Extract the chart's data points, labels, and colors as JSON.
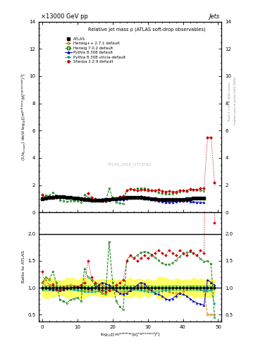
{
  "title_top": "×13000 GeV pp",
  "title_right": "Jets",
  "plot_title": "Relative jet mass ρ (ATLAS soft-drop observables)",
  "watermark": "ATLAS_2019_I1772062",
  "ylabel_main": "(1/σ$_{resum}$) dσ/d log$_{10}$[(m$^{soft drop}$/p$_T^{ungroomed}$)$^2$]",
  "ylabel_ratio": "Ratio to ATLAS",
  "xlabel": "log$_{10}$[(m$^{soft drop}$/p$_T^{ungroomed}$)$^2$]",
  "right_label_top": "Rivet 3.1.10, ≥ 400k events",
  "right_label_bot": "mcplots.cern.ch [arXiv:1306.3436]",
  "xlim": [
    -1,
    51
  ],
  "ylim_main": [
    0,
    14
  ],
  "ylim_ratio": [
    0.38,
    2.4
  ],
  "yticks_main": [
    0,
    2,
    4,
    6,
    8,
    10,
    12,
    14
  ],
  "yticks_ratio": [
    0.5,
    1.0,
    1.5,
    2.0
  ],
  "xticks": [
    0,
    10,
    20,
    30,
    40,
    50
  ],
  "series": [
    {
      "label": "ATLAS",
      "color": "#000000",
      "marker": "s",
      "ms": 3.5,
      "ls": "none",
      "filled": true
    },
    {
      "label": "Herwig++ 2.7.1 default",
      "color": "#cc7700",
      "marker": "o",
      "ms": 3.0,
      "ls": "--",
      "filled": false
    },
    {
      "label": "Herwig 7.0.2 default",
      "color": "#007700",
      "marker": "s",
      "ms": 3.0,
      "ls": "--",
      "filled": false
    },
    {
      "label": "Pythia 8.308 default",
      "color": "#0000cc",
      "marker": "^",
      "ms": 3.0,
      "ls": "-",
      "filled": true
    },
    {
      "label": "Pythia 8.308 vincia-default",
      "color": "#00aaaa",
      "marker": "v",
      "ms": 3.0,
      "ls": "--",
      "filled": true
    },
    {
      "label": "Sherpa 2.2.9 default",
      "color": "#cc0000",
      "marker": "D",
      "ms": 2.5,
      "ls": ":",
      "filled": true
    }
  ],
  "band_yellow": {
    "color": "#ffff00",
    "alpha": 0.6
  },
  "band_green": {
    "color": "#33cc33",
    "alpha": 0.4
  },
  "n_bins": 50,
  "x_start": 0,
  "x_end": 49
}
